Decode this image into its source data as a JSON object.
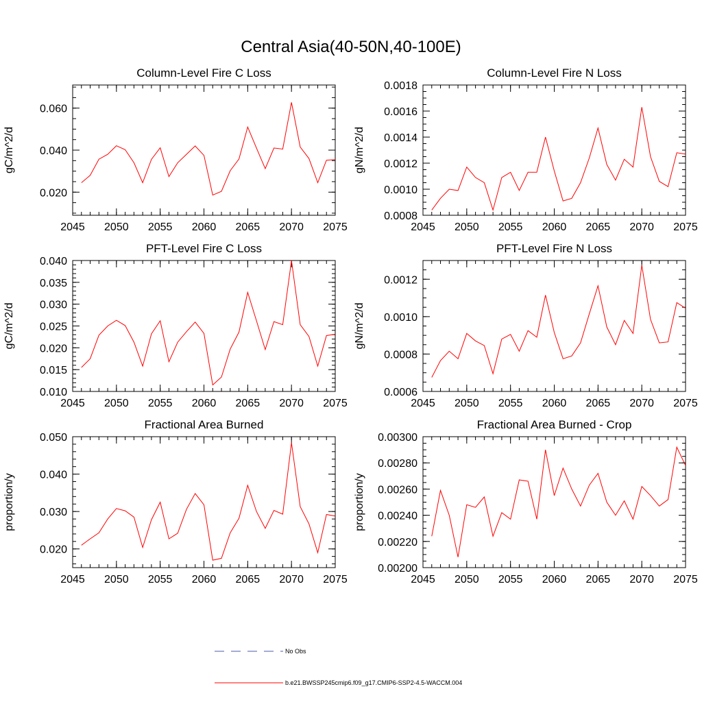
{
  "figure": {
    "title": "Central Asia(40-50N,40-100E)"
  },
  "chart_data": [
    {
      "type": "line",
      "title": "Column-Level Fire C Loss",
      "xlabel": "",
      "ylabel": "gC/m^2/d",
      "xlim": [
        2045,
        2075
      ],
      "ylim": [
        0.009,
        0.071
      ],
      "x_ticks": [
        "2045",
        "2050",
        "2055",
        "2060",
        "2065",
        "2070",
        "2075"
      ],
      "y_ticks": [
        {
          "v": 0.02,
          "label": "0.020"
        },
        {
          "v": 0.04,
          "label": "0.040"
        },
        {
          "v": 0.06,
          "label": "0.060"
        }
      ],
      "x_minor_step": 1,
      "y_minor_step": 0.005,
      "x": [
        2046,
        2047,
        2048,
        2049,
        2050,
        2051,
        2052,
        2053,
        2054,
        2055,
        2056,
        2057,
        2058,
        2059,
        2060,
        2061,
        2062,
        2063,
        2064,
        2065,
        2066,
        2067,
        2068,
        2069,
        2070,
        2071,
        2072,
        2073,
        2074,
        2075
      ],
      "series": [
        {
          "color": "#ff0000",
          "values": [
            0.0245,
            0.028,
            0.0357,
            0.038,
            0.0421,
            0.0402,
            0.034,
            0.0245,
            0.0356,
            0.0411,
            0.0274,
            0.034,
            0.038,
            0.042,
            0.0375,
            0.0186,
            0.0204,
            0.0302,
            0.0358,
            0.051,
            0.041,
            0.0312,
            0.041,
            0.0405,
            0.0627,
            0.0415,
            0.036,
            0.0245,
            0.0352,
            0.0355
          ]
        }
      ]
    },
    {
      "type": "line",
      "title": "Column-Level Fire N Loss",
      "xlabel": "",
      "ylabel": "gN/m^2/d",
      "xlim": [
        2045,
        2075
      ],
      "ylim": [
        0.0008,
        0.0018
      ],
      "x_ticks": [
        "2045",
        "2050",
        "2055",
        "2060",
        "2065",
        "2070",
        "2075"
      ],
      "y_ticks": [
        {
          "v": 0.0008,
          "label": "0.0008"
        },
        {
          "v": 0.001,
          "label": "0.0010"
        },
        {
          "v": 0.0012,
          "label": "0.0012"
        },
        {
          "v": 0.0014,
          "label": "0.0014"
        },
        {
          "v": 0.0016,
          "label": "0.0016"
        },
        {
          "v": 0.0018,
          "label": "0.0018"
        }
      ],
      "x_minor_step": 1,
      "y_minor_step": 5e-05,
      "x": [
        2046,
        2047,
        2048,
        2049,
        2050,
        2051,
        2052,
        2053,
        2054,
        2055,
        2056,
        2057,
        2058,
        2059,
        2060,
        2061,
        2062,
        2063,
        2064,
        2065,
        2066,
        2067,
        2068,
        2069,
        2070,
        2071,
        2072,
        2073,
        2074,
        2075
      ],
      "series": [
        {
          "color": "#ff0000",
          "values": [
            0.00084,
            0.00093,
            0.001,
            0.00099,
            0.00117,
            0.00109,
            0.00105,
            0.00084,
            0.00109,
            0.00113,
            0.00099,
            0.00113,
            0.00113,
            0.0014,
            0.00114,
            0.00091,
            0.00093,
            0.00105,
            0.00124,
            0.00147,
            0.00119,
            0.00107,
            0.00123,
            0.00117,
            0.00163,
            0.00125,
            0.00106,
            0.00102,
            0.00128,
            0.00127
          ]
        }
      ]
    },
    {
      "type": "line",
      "title": "PFT-Level Fire C Loss",
      "xlabel": "",
      "ylabel": "gC/m^2/d",
      "xlim": [
        2045,
        2075
      ],
      "ylim": [
        0.01,
        0.04
      ],
      "x_ticks": [
        "2045",
        "2050",
        "2055",
        "2060",
        "2065",
        "2070",
        "2075"
      ],
      "y_ticks": [
        {
          "v": 0.01,
          "label": "0.010"
        },
        {
          "v": 0.015,
          "label": "0.015"
        },
        {
          "v": 0.02,
          "label": "0.020"
        },
        {
          "v": 0.025,
          "label": "0.025"
        },
        {
          "v": 0.03,
          "label": "0.030"
        },
        {
          "v": 0.035,
          "label": "0.035"
        },
        {
          "v": 0.04,
          "label": "0.040"
        }
      ],
      "x_minor_step": 1,
      "y_minor_step": 0.001,
      "x": [
        2046,
        2047,
        2048,
        2049,
        2050,
        2051,
        2052,
        2053,
        2054,
        2055,
        2056,
        2057,
        2058,
        2059,
        2060,
        2061,
        2062,
        2063,
        2064,
        2065,
        2066,
        2067,
        2068,
        2069,
        2070,
        2071,
        2072,
        2073,
        2074,
        2075
      ],
      "series": [
        {
          "color": "#ff0000",
          "values": [
            0.0155,
            0.0175,
            0.0229,
            0.025,
            0.0263,
            0.0251,
            0.0213,
            0.0158,
            0.0232,
            0.0262,
            0.0168,
            0.0213,
            0.0237,
            0.0259,
            0.0233,
            0.0115,
            0.0133,
            0.0197,
            0.0236,
            0.0327,
            0.0262,
            0.0196,
            0.026,
            0.0253,
            0.04,
            0.0253,
            0.0226,
            0.0158,
            0.0228,
            0.0231
          ]
        }
      ]
    },
    {
      "type": "line",
      "title": "PFT-Level Fire N Loss",
      "xlabel": "",
      "ylabel": "gN/m^2/d",
      "xlim": [
        2045,
        2075
      ],
      "ylim": [
        0.0006,
        0.0013
      ],
      "x_ticks": [
        "2045",
        "2050",
        "2055",
        "2060",
        "2065",
        "2070",
        "2075"
      ],
      "y_ticks": [
        {
          "v": 0.0006,
          "label": "0.0006"
        },
        {
          "v": 0.0008,
          "label": "0.0008"
        },
        {
          "v": 0.001,
          "label": "0.0010"
        },
        {
          "v": 0.0012,
          "label": "0.0012"
        }
      ],
      "x_minor_step": 1,
      "y_minor_step": 5e-05,
      "x": [
        2046,
        2047,
        2048,
        2049,
        2050,
        2051,
        2052,
        2053,
        2054,
        2055,
        2056,
        2057,
        2058,
        2059,
        2060,
        2061,
        2062,
        2063,
        2064,
        2065,
        2066,
        2067,
        2068,
        2069,
        2070,
        2071,
        2072,
        2073,
        2074,
        2075
      ],
      "series": [
        {
          "color": "#ff0000",
          "values": [
            0.000675,
            0.000765,
            0.000815,
            0.000775,
            0.00091,
            0.00087,
            0.000845,
            0.000695,
            0.00088,
            0.000905,
            0.000815,
            0.000925,
            0.00089,
            0.001115,
            0.000915,
            0.000775,
            0.00079,
            0.00086,
            0.001015,
            0.001165,
            0.000945,
            0.00085,
            0.00098,
            0.00091,
            0.001275,
            0.000985,
            0.00086,
            0.000865,
            0.001075,
            0.001045
          ]
        }
      ]
    },
    {
      "type": "line",
      "title": "Fractional Area Burned",
      "xlabel": "",
      "ylabel": "proportion/y",
      "xlim": [
        2045,
        2075
      ],
      "ylim": [
        0.015,
        0.05
      ],
      "x_ticks": [
        "2045",
        "2050",
        "2055",
        "2060",
        "2065",
        "2070",
        "2075"
      ],
      "y_ticks": [
        {
          "v": 0.02,
          "label": "0.020"
        },
        {
          "v": 0.03,
          "label": "0.030"
        },
        {
          "v": 0.04,
          "label": "0.040"
        },
        {
          "v": 0.05,
          "label": "0.050"
        }
      ],
      "x_minor_step": 1,
      "y_minor_step": 0.002,
      "x": [
        2046,
        2047,
        2048,
        2049,
        2050,
        2051,
        2052,
        2053,
        2054,
        2055,
        2056,
        2057,
        2058,
        2059,
        2060,
        2061,
        2062,
        2063,
        2064,
        2065,
        2066,
        2067,
        2068,
        2069,
        2070,
        2071,
        2072,
        2073,
        2074,
        2075
      ],
      "series": [
        {
          "color": "#ff0000",
          "values": [
            0.021,
            0.0227,
            0.0243,
            0.028,
            0.0308,
            0.0302,
            0.0285,
            0.0204,
            0.0278,
            0.0325,
            0.0227,
            0.0242,
            0.0306,
            0.0348,
            0.0318,
            0.017,
            0.0175,
            0.0243,
            0.0282,
            0.037,
            0.03,
            0.0255,
            0.0303,
            0.0293,
            0.0484,
            0.0313,
            0.0267,
            0.019,
            0.0292,
            0.0288
          ]
        }
      ]
    },
    {
      "type": "line",
      "title": "Fractional Area Burned - Crop",
      "xlabel": "",
      "ylabel": "proportion/y",
      "xlim": [
        2045,
        2075
      ],
      "ylim": [
        0.002,
        0.003
      ],
      "x_ticks": [
        "2045",
        "2050",
        "2055",
        "2060",
        "2065",
        "2070",
        "2075"
      ],
      "y_ticks": [
        {
          "v": 0.002,
          "label": "0.00200"
        },
        {
          "v": 0.0022,
          "label": "0.00220"
        },
        {
          "v": 0.0024,
          "label": "0.00240"
        },
        {
          "v": 0.0026,
          "label": "0.00260"
        },
        {
          "v": 0.0028,
          "label": "0.00280"
        },
        {
          "v": 0.003,
          "label": "0.00300"
        }
      ],
      "x_minor_step": 1,
      "y_minor_step": 5e-05,
      "x": [
        2046,
        2047,
        2048,
        2049,
        2050,
        2051,
        2052,
        2053,
        2054,
        2055,
        2056,
        2057,
        2058,
        2059,
        2060,
        2061,
        2062,
        2063,
        2064,
        2065,
        2066,
        2067,
        2068,
        2069,
        2070,
        2071,
        2072,
        2073,
        2074,
        2075
      ],
      "series": [
        {
          "color": "#ff0000",
          "values": [
            0.00224,
            0.00259,
            0.0024,
            0.00208,
            0.00248,
            0.00246,
            0.00254,
            0.00224,
            0.00242,
            0.00237,
            0.00267,
            0.00266,
            0.00237,
            0.0029,
            0.00255,
            0.00276,
            0.0026,
            0.00247,
            0.00263,
            0.00272,
            0.0025,
            0.0024,
            0.00251,
            0.00237,
            0.00262,
            0.00255,
            0.00247,
            0.00252,
            0.00292,
            0.00278
          ]
        }
      ]
    }
  ],
  "legend": {
    "items": [
      {
        "label": "No Obs",
        "color": "#4a5aa8",
        "style": "dashed"
      },
      {
        "label": "b.e21.BWSSP245cmip6.f09_g17.CMIP6-SSP2-4.5-WACCM.004",
        "color": "#ff0000",
        "style": "solid"
      }
    ]
  }
}
